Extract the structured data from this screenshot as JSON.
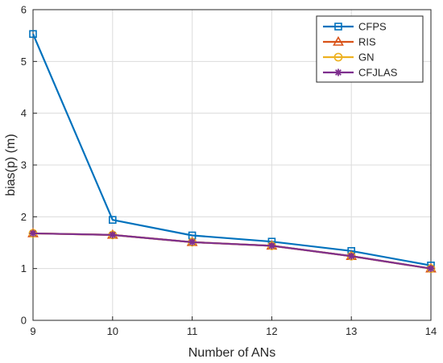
{
  "chart_data": {
    "type": "line",
    "xlabel": "Number of ANs",
    "ylabel": "bias(p) (m)",
    "x": [
      9,
      10,
      11,
      12,
      13,
      14
    ],
    "xlim": [
      9,
      14
    ],
    "ylim": [
      0,
      6
    ],
    "xticks": [
      "9",
      "10",
      "11",
      "12",
      "13",
      "14"
    ],
    "yticks": [
      "0",
      "1",
      "2",
      "3",
      "4",
      "5",
      "6"
    ],
    "grid": true,
    "legend_position": "top-right",
    "series": [
      {
        "name": "CFPS",
        "color": "#0072BD",
        "marker": "square",
        "values": [
          5.53,
          1.94,
          1.64,
          1.52,
          1.34,
          1.06
        ]
      },
      {
        "name": "RIS",
        "color": "#D95319",
        "marker": "triangle",
        "values": [
          1.68,
          1.65,
          1.51,
          1.44,
          1.24,
          1.0
        ]
      },
      {
        "name": "GN",
        "color": "#EDB120",
        "marker": "circle",
        "values": [
          1.68,
          1.65,
          1.51,
          1.44,
          1.24,
          1.0
        ]
      },
      {
        "name": "CFJLAS",
        "color": "#7E2F8E",
        "marker": "asterisk",
        "values": [
          1.68,
          1.65,
          1.51,
          1.44,
          1.24,
          1.0
        ]
      }
    ]
  }
}
